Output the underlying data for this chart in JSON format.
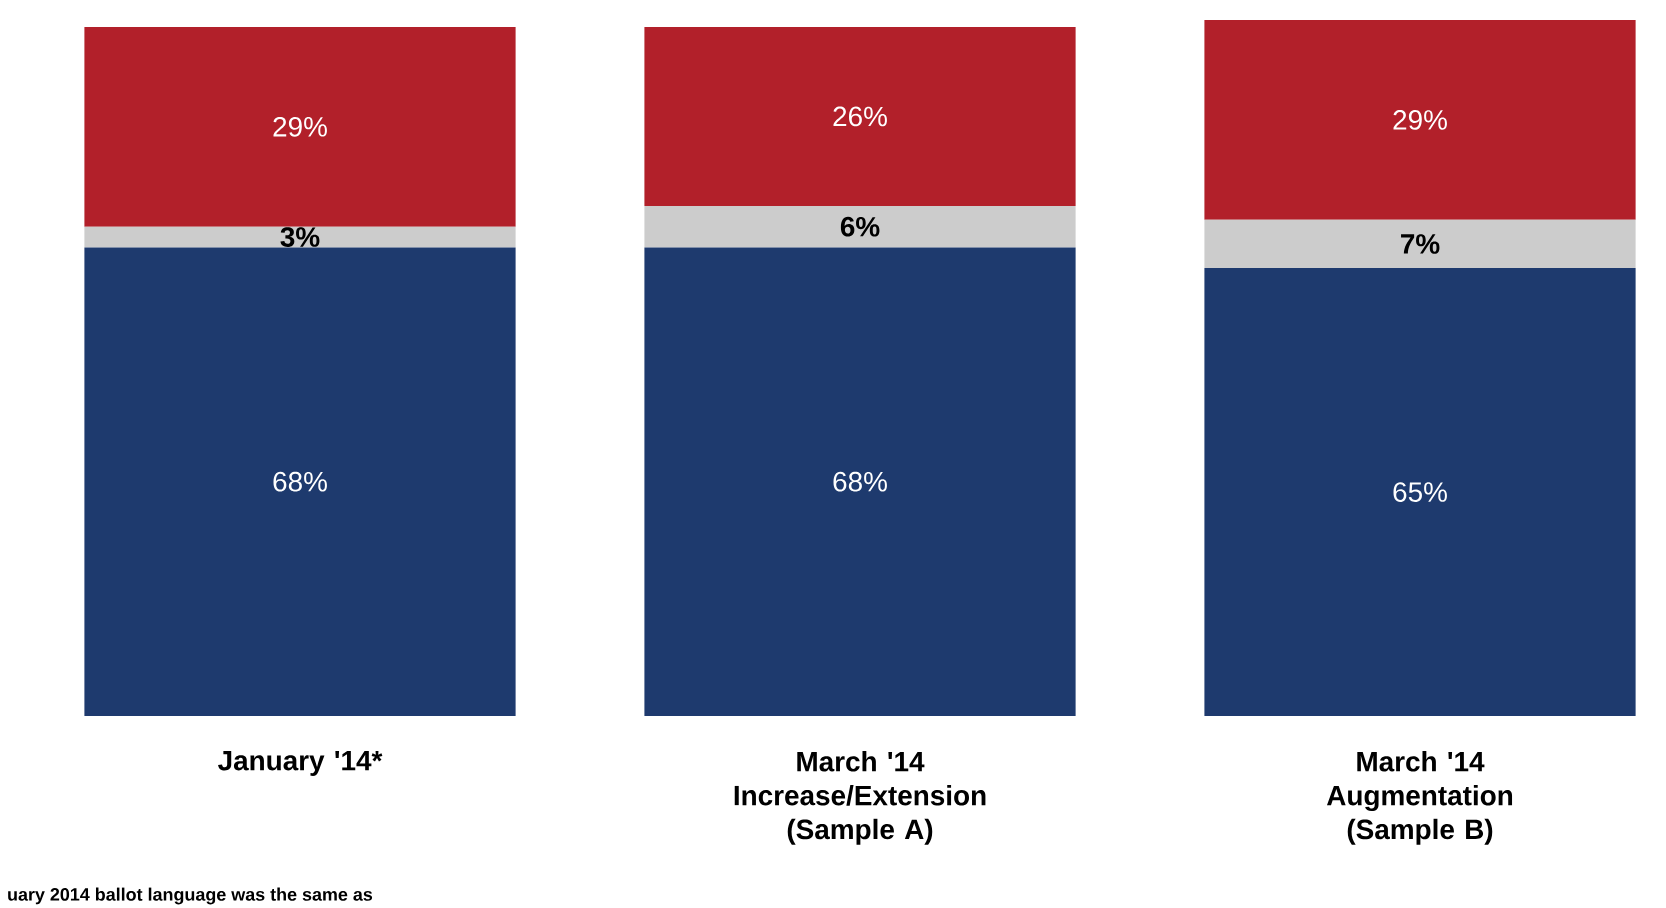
{
  "chart_data": {
    "type": "bar",
    "stacked": true,
    "categories": [
      "January '14*",
      "March '14 Increase/Extension (Sample A)",
      "March '14 Augmentation (Sample B)"
    ],
    "series": [
      {
        "color": "#1e3a6e",
        "values": [
          68,
          68,
          65
        ],
        "value_labels": [
          "68%",
          "68%",
          "65%"
        ]
      },
      {
        "color": "#cccccc",
        "values": [
          3,
          6,
          7
        ],
        "value_labels": [
          "3%",
          "6%",
          "7%"
        ]
      },
      {
        "color": "#b2202a",
        "values": [
          29,
          26,
          29
        ],
        "value_labels": [
          "29%",
          "26%",
          "29%"
        ]
      }
    ],
    "annotations": [
      "uary 2014 ballot language was the same as"
    ]
  }
}
